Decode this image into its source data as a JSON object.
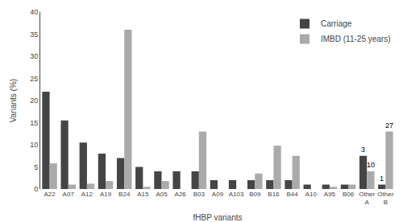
{
  "chart_data": {
    "type": "bar",
    "categories": [
      "A22",
      "A07",
      "A12",
      "A19",
      "B24",
      "A15",
      "A05",
      "A26",
      "B03",
      "A09",
      "A103",
      "B09",
      "B16",
      "B44",
      "A10",
      "A95",
      "B06",
      "Other\nA",
      "Other\nB"
    ],
    "series": [
      {
        "name": "Carriage",
        "color": "#454545",
        "values": [
          22.0,
          15.5,
          10.5,
          8.0,
          7.0,
          5.0,
          4.0,
          4.0,
          4.0,
          2.0,
          2.0,
          2.0,
          2.0,
          2.0,
          1.0,
          1.0,
          1.0,
          7.5,
          1.0
        ]
      },
      {
        "name": "IMBD (11-25 years)",
        "color": "#aaaaaa",
        "values": [
          5.8,
          1.0,
          1.2,
          1.8,
          36.0,
          0.5,
          1.8,
          0.0,
          13.0,
          0.0,
          0.0,
          3.5,
          9.8,
          7.5,
          0.0,
          0.5,
          1.0,
          4.0,
          13.0
        ]
      }
    ],
    "xlabel": "fHBP variants",
    "ylabel": "Variants (%)",
    "ylim": [
      0,
      40
    ],
    "yticks": [
      0,
      5,
      10,
      15,
      20,
      25,
      30,
      35,
      40
    ],
    "legend": "upper right",
    "grid": false,
    "annotations": [
      {
        "category": "Other\nA",
        "series": "Carriage",
        "text": "3"
      },
      {
        "category": "Other\nA",
        "series": "IMBD (11-25 years)",
        "text": "10"
      },
      {
        "category": "Other\nB",
        "series": "Carriage",
        "text": "1"
      },
      {
        "category": "Other\nB",
        "series": "IMBD (11-25 years)",
        "text": "27"
      }
    ]
  }
}
